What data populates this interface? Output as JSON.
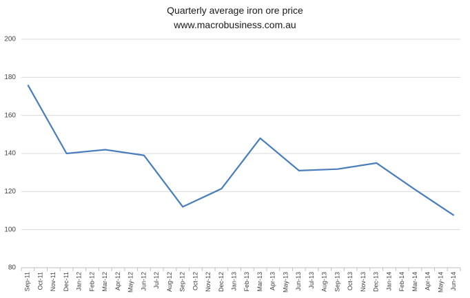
{
  "chart_data": {
    "type": "line",
    "title": "Quarterly average iron ore price",
    "subtitle": "www.macrobusiness.com.au",
    "xticks": [
      "Sep-11",
      "Oct-11",
      "Nov-11",
      "Dec-11",
      "Jan-12",
      "Feb-12",
      "Mar-12",
      "Apr-12",
      "May-12",
      "Jun-12",
      "Jul-12",
      "Aug-12",
      "Sep-12",
      "Oct-12",
      "Nov-12",
      "Dec-12",
      "Jan-13",
      "Feb-13",
      "Mar-13",
      "Apr-13",
      "May-13",
      "Jun-13",
      "Jul-13",
      "Aug-13",
      "Sep-13",
      "Oct-13",
      "Nov-13",
      "Dec-13",
      "Jan-14",
      "Feb-14",
      "Mar-14",
      "Apr-14",
      "May-14",
      "Jun-14"
    ],
    "x": [
      "Sep-11",
      "Dec-11",
      "Mar-12",
      "Jun-12",
      "Sep-12",
      "Dec-12",
      "Mar-13",
      "Jun-13",
      "Sep-13",
      "Dec-13",
      "Mar-14",
      "Jun-14"
    ],
    "series": [
      {
        "color": "#4a7ebb",
        "values": [
          176,
          140,
          142,
          139,
          112,
          121.5,
          148,
          131,
          131.8,
          135,
          121,
          107.5
        ]
      }
    ],
    "ylim": [
      80,
      200
    ],
    "yticks": [
      80,
      100,
      120,
      140,
      160,
      180,
      200
    ],
    "grid": true
  }
}
